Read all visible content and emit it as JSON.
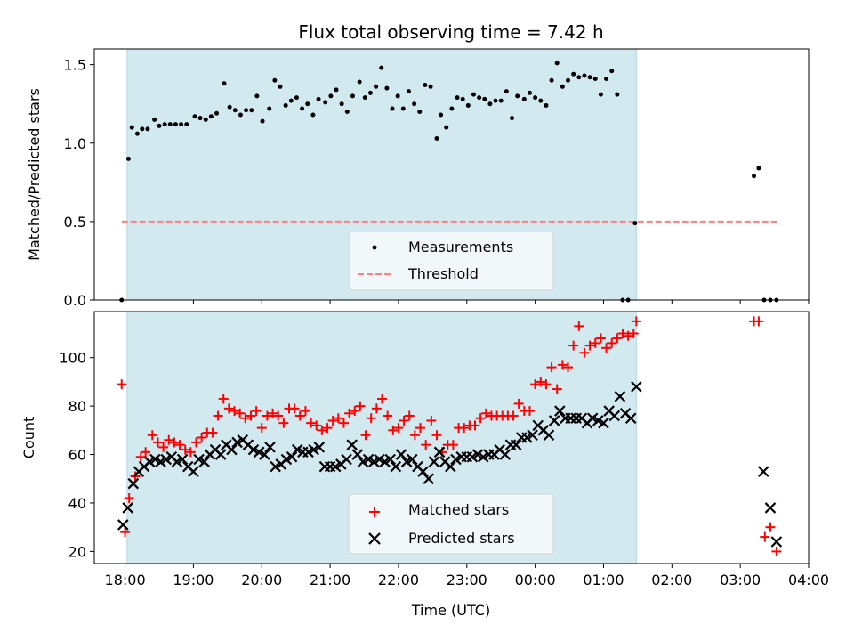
{
  "figure_title": "Flux total observing time = 7.42 h",
  "colors": {
    "observing_band": "#d3e9f0",
    "observing_band_edge": "#b3d6e3",
    "measurements": "#000000",
    "threshold": "#ff7f7f",
    "matched": "#ff0000",
    "predicted": "#000000",
    "legend_bg": "#f4f9fb"
  },
  "chart_data": [
    {
      "type": "scatter",
      "name": "ratio-panel",
      "ylabel": "Matched/Predicted stars",
      "xlabel": "",
      "ylim": [
        0,
        1.6
      ],
      "xlim": [
        17.55,
        28.0
      ],
      "yticks": [
        0.0,
        0.5,
        1.0,
        1.5
      ],
      "ytick_labels": [
        "0.0",
        "0.5",
        "1.0",
        "1.5"
      ],
      "observing_window": [
        18.03,
        25.48
      ],
      "legend": {
        "placement": "lower-center",
        "entries": [
          {
            "name": "Measurements",
            "marker": "dot"
          },
          {
            "name": "Threshold",
            "marker": "dashed-line"
          }
        ]
      },
      "threshold": {
        "y": 0.5,
        "x": [
          17.95,
          27.55
        ]
      },
      "series": [
        {
          "name": "Measurements",
          "x": [
            17.95,
            18.05,
            18.1,
            18.18,
            18.25,
            18.33,
            18.43,
            18.5,
            18.58,
            18.66,
            18.74,
            18.82,
            18.9,
            19.02,
            19.1,
            19.18,
            19.26,
            19.34,
            19.45,
            19.53,
            19.61,
            19.69,
            19.77,
            19.85,
            19.93,
            20.01,
            20.11,
            20.19,
            20.27,
            20.35,
            20.43,
            20.51,
            20.59,
            20.67,
            20.75,
            20.83,
            20.93,
            21.01,
            21.09,
            21.17,
            21.25,
            21.33,
            21.43,
            21.51,
            21.59,
            21.67,
            21.75,
            21.83,
            21.91,
            21.99,
            22.07,
            22.15,
            22.23,
            22.31,
            22.39,
            22.47,
            22.56,
            22.62,
            22.7,
            22.78,
            22.86,
            22.94,
            23.02,
            23.1,
            23.18,
            23.26,
            23.34,
            23.42,
            23.5,
            23.58,
            23.66,
            23.74,
            23.84,
            23.92,
            24.0,
            24.08,
            24.16,
            24.24,
            24.32,
            24.4,
            24.48,
            24.56,
            24.64,
            24.72,
            24.8,
            24.88,
            24.96,
            25.04,
            25.12,
            25.2,
            25.28,
            25.36,
            25.46,
            27.2,
            27.27,
            27.35,
            27.44,
            27.53
          ],
          "y": [
            0.0,
            0.9,
            1.1,
            1.06,
            1.09,
            1.09,
            1.15,
            1.11,
            1.12,
            1.12,
            1.12,
            1.12,
            1.12,
            1.17,
            1.16,
            1.15,
            1.17,
            1.19,
            1.38,
            1.23,
            1.21,
            1.18,
            1.21,
            1.21,
            1.3,
            1.14,
            1.22,
            1.4,
            1.36,
            1.24,
            1.27,
            1.29,
            1.22,
            1.25,
            1.18,
            1.28,
            1.26,
            1.3,
            1.34,
            1.25,
            1.2,
            1.3,
            1.39,
            1.29,
            1.32,
            1.36,
            1.48,
            1.35,
            1.22,
            1.3,
            1.22,
            1.33,
            1.25,
            1.2,
            1.37,
            1.36,
            1.03,
            1.18,
            1.1,
            1.22,
            1.29,
            1.28,
            1.24,
            1.31,
            1.29,
            1.28,
            1.25,
            1.27,
            1.27,
            1.33,
            1.16,
            1.3,
            1.28,
            1.32,
            1.29,
            1.27,
            1.24,
            1.4,
            1.51,
            1.36,
            1.4,
            1.44,
            1.42,
            1.43,
            1.42,
            1.41,
            1.31,
            1.41,
            1.46,
            1.31,
            0.0,
            0.0,
            0.49,
            0.79,
            0.84,
            0.0,
            0.0,
            0.0
          ],
          "y_note": "last three entries unused"
        }
      ]
    },
    {
      "type": "scatter",
      "name": "count-panel",
      "ylabel": "Count",
      "xlabel": "Time (UTC)",
      "ylim": [
        15,
        119
      ],
      "xlim": [
        17.55,
        28.0
      ],
      "yticks": [
        20,
        40,
        60,
        80,
        100
      ],
      "ytick_labels": [
        "20",
        "40",
        "60",
        "80",
        "100"
      ],
      "xticks": [
        18,
        19,
        20,
        21,
        22,
        23,
        24,
        25,
        26,
        27,
        28
      ],
      "xtick_labels": [
        "18:00",
        "19:00",
        "20:00",
        "21:00",
        "22:00",
        "23:00",
        "00:00",
        "01:00",
        "02:00",
        "03:00",
        "04:00"
      ],
      "observing_window": [
        18.03,
        25.48
      ],
      "legend": {
        "placement": "lower-center",
        "entries": [
          {
            "name": "Matched stars",
            "marker": "plus"
          },
          {
            "name": "Predicted stars",
            "marker": "x"
          }
        ]
      },
      "series": [
        {
          "name": "Matched stars",
          "x": [
            17.95,
            18.0,
            18.06,
            18.15,
            18.23,
            18.3,
            18.4,
            18.48,
            18.56,
            18.64,
            18.72,
            18.8,
            18.88,
            18.96,
            19.04,
            19.12,
            19.2,
            19.28,
            19.36,
            19.44,
            19.52,
            19.6,
            19.68,
            19.76,
            19.84,
            19.92,
            20.0,
            20.08,
            20.16,
            20.24,
            20.32,
            20.4,
            20.48,
            20.56,
            20.64,
            20.72,
            20.8,
            20.88,
            20.96,
            21.04,
            21.12,
            21.2,
            21.28,
            21.36,
            21.44,
            21.52,
            21.6,
            21.68,
            21.76,
            21.84,
            21.92,
            22.0,
            22.08,
            22.16,
            22.24,
            22.32,
            22.4,
            22.48,
            22.56,
            22.64,
            22.72,
            22.8,
            22.88,
            22.96,
            23.04,
            23.12,
            23.2,
            23.28,
            23.36,
            23.44,
            23.52,
            23.6,
            23.68,
            23.76,
            23.84,
            23.92,
            24.0,
            24.08,
            24.16,
            24.24,
            24.32,
            24.4,
            24.48,
            24.56,
            24.64,
            24.72,
            24.8,
            24.88,
            24.96,
            25.04,
            25.12,
            25.2,
            25.28,
            25.36,
            25.44,
            25.48,
            27.2,
            27.27,
            27.36,
            27.44,
            27.53
          ],
          "y": [
            89,
            28,
            42,
            51,
            59,
            61,
            68,
            65,
            63,
            66,
            65,
            64,
            62,
            61,
            65,
            67,
            69,
            69,
            76,
            83,
            79,
            78,
            77,
            75,
            76,
            78,
            71,
            76,
            77,
            76,
            73,
            79,
            79,
            76,
            78,
            73,
            72,
            70,
            71,
            74,
            75,
            73,
            77,
            78,
            80,
            68,
            75,
            79,
            83,
            76,
            70,
            71,
            74,
            76,
            68,
            71,
            64,
            74,
            68,
            61,
            64,
            64,
            71,
            71,
            72,
            72,
            75,
            77,
            76,
            76,
            76,
            76,
            76,
            81,
            78,
            78,
            89,
            90,
            89,
            96,
            87,
            97,
            96,
            105,
            113,
            102,
            105,
            106,
            108,
            104,
            106,
            108,
            110,
            109,
            110,
            115,
            115,
            115,
            26,
            30,
            20
          ],
          "y_note": "aligned by index"
        },
        {
          "name": "Predicted stars",
          "x": [
            17.97,
            18.04,
            18.12,
            18.2,
            18.28,
            18.36,
            18.44,
            18.52,
            18.6,
            18.68,
            18.76,
            18.84,
            18.92,
            19.0,
            19.08,
            19.16,
            19.24,
            19.32,
            19.4,
            19.48,
            19.56,
            19.64,
            19.72,
            19.8,
            19.88,
            19.96,
            20.04,
            20.12,
            20.2,
            20.28,
            20.36,
            20.44,
            20.52,
            20.6,
            20.68,
            20.76,
            20.84,
            20.92,
            21.0,
            21.08,
            21.16,
            21.24,
            21.32,
            21.4,
            21.48,
            21.56,
            21.64,
            21.72,
            21.8,
            21.88,
            21.96,
            22.04,
            22.12,
            22.2,
            22.28,
            22.36,
            22.44,
            22.52,
            22.6,
            22.68,
            22.76,
            22.84,
            22.92,
            23.0,
            23.08,
            23.16,
            23.24,
            23.32,
            23.4,
            23.48,
            23.56,
            23.64,
            23.72,
            23.8,
            23.88,
            23.96,
            24.04,
            24.12,
            24.2,
            24.28,
            24.36,
            24.44,
            24.52,
            24.6,
            24.68,
            24.76,
            24.84,
            24.92,
            25.0,
            25.08,
            25.16,
            25.24,
            25.32,
            25.4,
            25.48,
            27.34,
            27.44,
            27.53
          ],
          "y": [
            31,
            38,
            48,
            53,
            55,
            57,
            58,
            57,
            58,
            59,
            57,
            58,
            55,
            53,
            58,
            57,
            60,
            62,
            60,
            64,
            62,
            65,
            66,
            64,
            62,
            61,
            60,
            63,
            55,
            56,
            58,
            59,
            62,
            61,
            61,
            62,
            63,
            55,
            55,
            55,
            56,
            58,
            64,
            60,
            57,
            58,
            57,
            58,
            57,
            58,
            55,
            60,
            57,
            58,
            55,
            53,
            50,
            57,
            61,
            57,
            55,
            58,
            59,
            59,
            59,
            60,
            59,
            60,
            60,
            62,
            60,
            64,
            64,
            67,
            67,
            68,
            72,
            70,
            68,
            74,
            78,
            75,
            75,
            75,
            75,
            73,
            75,
            74,
            73,
            78,
            76,
            84,
            77,
            75,
            88,
            53,
            38,
            24
          ]
        }
      ]
    }
  ]
}
